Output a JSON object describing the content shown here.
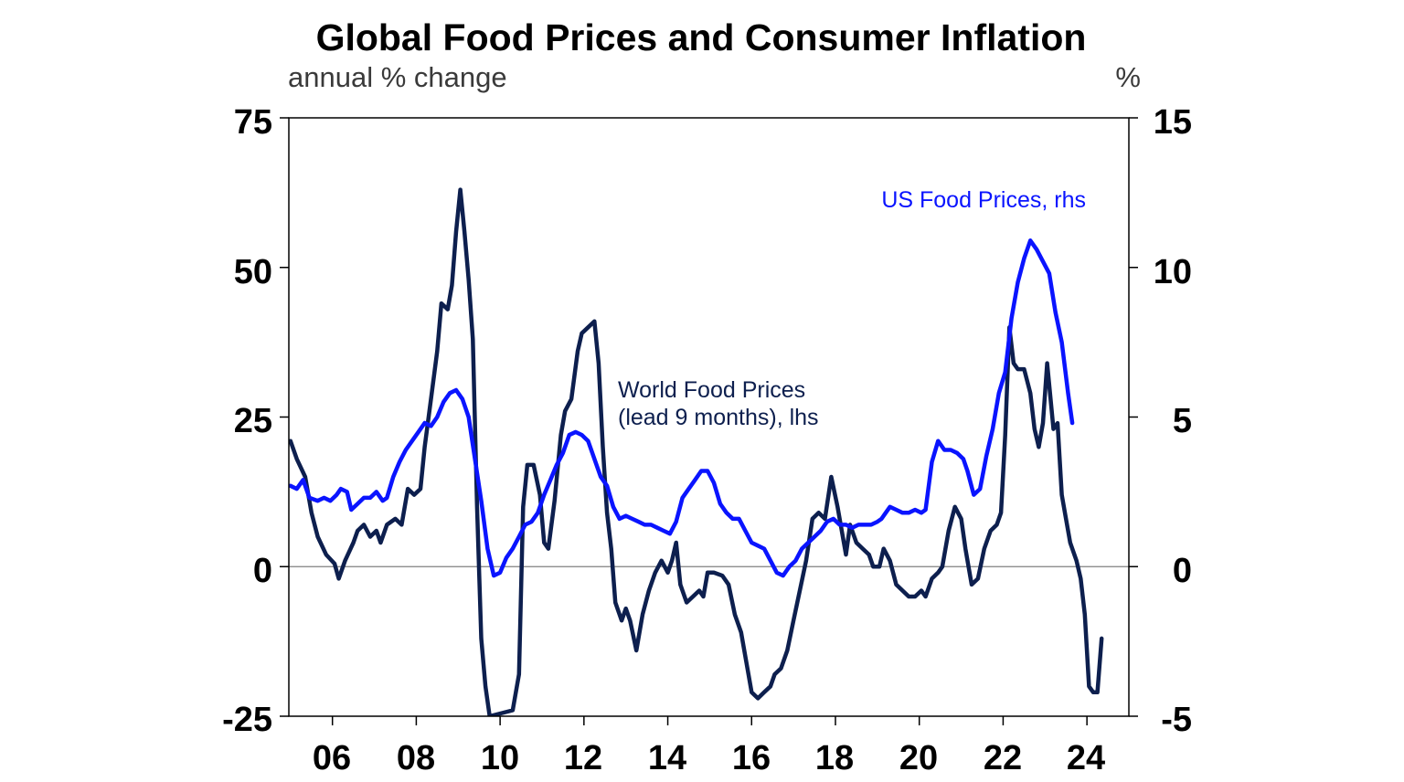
{
  "chart_data": {
    "type": "line",
    "title": "Global Food Prices and Consumer Inflation",
    "subtitle": "annual % change",
    "right_unit": "%",
    "x_ticks": [
      "06",
      "08",
      "10",
      "12",
      "14",
      "16",
      "18",
      "20",
      "22",
      "24"
    ],
    "x_tick_years": [
      2006,
      2008,
      2010,
      2012,
      2014,
      2016,
      2018,
      2020,
      2022,
      2024
    ],
    "xlim": [
      2004.96,
      2025.0
    ],
    "left_axis": {
      "ylim": [
        -25,
        75
      ],
      "ticks": [
        "75",
        "50",
        "25",
        "0",
        "-25"
      ],
      "tick_values": [
        75,
        50,
        25,
        0,
        -25
      ]
    },
    "right_axis": {
      "ylim": [
        -5,
        15
      ],
      "ticks": [
        "15",
        "10",
        "5",
        "0",
        "-5"
      ],
      "tick_values": [
        15,
        10,
        5,
        0,
        -5
      ]
    },
    "series": [
      {
        "name": "World Food Prices",
        "label_line1": "World Food Prices",
        "label_line2": "(lead 9 months), lhs",
        "axis": "left",
        "color": "#0d1f4e",
        "points": [
          [
            2005.0,
            21
          ],
          [
            2005.15,
            18
          ],
          [
            2005.35,
            15
          ],
          [
            2005.5,
            9
          ],
          [
            2005.65,
            5
          ],
          [
            2005.85,
            2
          ],
          [
            2006.05,
            0.5
          ],
          [
            2006.15,
            -2
          ],
          [
            2006.3,
            1
          ],
          [
            2006.5,
            4
          ],
          [
            2006.6,
            6
          ],
          [
            2006.75,
            7
          ],
          [
            2006.9,
            5
          ],
          [
            2007.05,
            6
          ],
          [
            2007.15,
            4
          ],
          [
            2007.3,
            7
          ],
          [
            2007.5,
            8
          ],
          [
            2007.65,
            7
          ],
          [
            2007.8,
            13
          ],
          [
            2007.95,
            12
          ],
          [
            2008.1,
            13
          ],
          [
            2008.2,
            20
          ],
          [
            2008.35,
            28
          ],
          [
            2008.5,
            36
          ],
          [
            2008.6,
            44
          ],
          [
            2008.75,
            43
          ],
          [
            2008.85,
            47
          ],
          [
            2008.95,
            56
          ],
          [
            2009.05,
            63
          ],
          [
            2009.15,
            56
          ],
          [
            2009.25,
            48
          ],
          [
            2009.35,
            38
          ],
          [
            2009.45,
            10
          ],
          [
            2009.55,
            -12
          ],
          [
            2009.65,
            -20
          ],
          [
            2009.75,
            -25
          ],
          [
            2010.3,
            -24
          ],
          [
            2010.45,
            -18
          ],
          [
            2010.55,
            10
          ],
          [
            2010.65,
            17
          ],
          [
            2010.8,
            17
          ],
          [
            2010.95,
            12
          ],
          [
            2011.05,
            4
          ],
          [
            2011.15,
            3
          ],
          [
            2011.3,
            11
          ],
          [
            2011.45,
            22
          ],
          [
            2011.55,
            26
          ],
          [
            2011.7,
            28
          ],
          [
            2011.85,
            36
          ],
          [
            2011.95,
            39
          ],
          [
            2012.1,
            40
          ],
          [
            2012.25,
            41
          ],
          [
            2012.35,
            34
          ],
          [
            2012.45,
            20
          ],
          [
            2012.55,
            9
          ],
          [
            2012.65,
            3
          ],
          [
            2012.75,
            -6
          ],
          [
            2012.9,
            -9
          ],
          [
            2013.0,
            -7
          ],
          [
            2013.1,
            -9
          ],
          [
            2013.25,
            -14
          ],
          [
            2013.4,
            -8
          ],
          [
            2013.55,
            -4
          ],
          [
            2013.7,
            -1
          ],
          [
            2013.85,
            1
          ],
          [
            2014.0,
            -1
          ],
          [
            2014.1,
            1
          ],
          [
            2014.2,
            4
          ],
          [
            2014.3,
            -3
          ],
          [
            2014.45,
            -6
          ],
          [
            2014.6,
            -5
          ],
          [
            2014.75,
            -4
          ],
          [
            2014.85,
            -5
          ],
          [
            2014.95,
            -1
          ],
          [
            2015.1,
            -1
          ],
          [
            2015.3,
            -1.5
          ],
          [
            2015.45,
            -3
          ],
          [
            2015.6,
            -8
          ],
          [
            2015.75,
            -11
          ],
          [
            2015.9,
            -17
          ],
          [
            2016.0,
            -21
          ],
          [
            2016.15,
            -22
          ],
          [
            2016.3,
            -21
          ],
          [
            2016.45,
            -20
          ],
          [
            2016.55,
            -18
          ],
          [
            2016.7,
            -17
          ],
          [
            2016.85,
            -14
          ],
          [
            2017.0,
            -9
          ],
          [
            2017.15,
            -4
          ],
          [
            2017.3,
            1
          ],
          [
            2017.45,
            8
          ],
          [
            2017.6,
            9
          ],
          [
            2017.75,
            8
          ],
          [
            2017.9,
            15
          ],
          [
            2018.05,
            10
          ],
          [
            2018.15,
            6
          ],
          [
            2018.25,
            2
          ],
          [
            2018.35,
            7
          ],
          [
            2018.5,
            4
          ],
          [
            2018.65,
            3
          ],
          [
            2018.8,
            2
          ],
          [
            2018.9,
            0
          ],
          [
            2019.05,
            0
          ],
          [
            2019.15,
            3
          ],
          [
            2019.3,
            1
          ],
          [
            2019.45,
            -3
          ],
          [
            2019.6,
            -4
          ],
          [
            2019.75,
            -5
          ],
          [
            2019.9,
            -5
          ],
          [
            2020.05,
            -4
          ],
          [
            2020.15,
            -5
          ],
          [
            2020.3,
            -2
          ],
          [
            2020.45,
            -1
          ],
          [
            2020.55,
            0
          ],
          [
            2020.7,
            6
          ],
          [
            2020.85,
            10
          ],
          [
            2021.0,
            8
          ],
          [
            2021.1,
            3
          ],
          [
            2021.25,
            -3
          ],
          [
            2021.4,
            -2
          ],
          [
            2021.55,
            3
          ],
          [
            2021.7,
            6
          ],
          [
            2021.85,
            7
          ],
          [
            2021.95,
            9
          ],
          [
            2022.05,
            22
          ],
          [
            2022.15,
            40
          ],
          [
            2022.25,
            34
          ],
          [
            2022.35,
            33
          ],
          [
            2022.5,
            33
          ],
          [
            2022.65,
            29
          ],
          [
            2022.75,
            23
          ],
          [
            2022.85,
            20
          ],
          [
            2022.95,
            24
          ],
          [
            2023.05,
            34
          ],
          [
            2023.2,
            23
          ],
          [
            2023.3,
            24
          ],
          [
            2023.4,
            12
          ],
          [
            2023.5,
            8
          ],
          [
            2023.6,
            4
          ],
          [
            2023.75,
            1
          ],
          [
            2023.85,
            -2
          ],
          [
            2023.95,
            -8
          ],
          [
            2024.05,
            -20
          ],
          [
            2024.15,
            -21
          ],
          [
            2024.25,
            -21
          ],
          [
            2024.35,
            -12
          ]
        ]
      },
      {
        "name": "US Food Prices",
        "label": "US Food Prices, rhs",
        "axis": "right",
        "color": "#0a14ff",
        "points": [
          [
            2005.0,
            2.7
          ],
          [
            2005.15,
            2.6
          ],
          [
            2005.3,
            2.9
          ],
          [
            2005.45,
            2.3
          ],
          [
            2005.65,
            2.2
          ],
          [
            2005.8,
            2.3
          ],
          [
            2005.95,
            2.2
          ],
          [
            2006.1,
            2.4
          ],
          [
            2006.2,
            2.6
          ],
          [
            2006.35,
            2.5
          ],
          [
            2006.45,
            1.9
          ],
          [
            2006.6,
            2.1
          ],
          [
            2006.75,
            2.3
          ],
          [
            2006.9,
            2.3
          ],
          [
            2007.05,
            2.5
          ],
          [
            2007.2,
            2.2
          ],
          [
            2007.3,
            2.3
          ],
          [
            2007.45,
            3.0
          ],
          [
            2007.6,
            3.5
          ],
          [
            2007.75,
            3.9
          ],
          [
            2007.9,
            4.2
          ],
          [
            2008.05,
            4.5
          ],
          [
            2008.2,
            4.8
          ],
          [
            2008.35,
            4.7
          ],
          [
            2008.5,
            5.0
          ],
          [
            2008.65,
            5.5
          ],
          [
            2008.8,
            5.8
          ],
          [
            2008.95,
            5.9
          ],
          [
            2009.1,
            5.6
          ],
          [
            2009.25,
            5.0
          ],
          [
            2009.4,
            3.6
          ],
          [
            2009.55,
            2.2
          ],
          [
            2009.7,
            0.6
          ],
          [
            2009.85,
            -0.3
          ],
          [
            2010.0,
            -0.2
          ],
          [
            2010.15,
            0.3
          ],
          [
            2010.3,
            0.6
          ],
          [
            2010.45,
            1.0
          ],
          [
            2010.6,
            1.4
          ],
          [
            2010.75,
            1.5
          ],
          [
            2010.9,
            1.8
          ],
          [
            2011.05,
            2.4
          ],
          [
            2011.2,
            2.9
          ],
          [
            2011.35,
            3.4
          ],
          [
            2011.5,
            3.8
          ],
          [
            2011.65,
            4.4
          ],
          [
            2011.8,
            4.5
          ],
          [
            2011.95,
            4.4
          ],
          [
            2012.1,
            4.2
          ],
          [
            2012.25,
            3.6
          ],
          [
            2012.4,
            3.0
          ],
          [
            2012.55,
            2.7
          ],
          [
            2012.7,
            2.0
          ],
          [
            2012.85,
            1.6
          ],
          [
            2013.0,
            1.7
          ],
          [
            2013.15,
            1.6
          ],
          [
            2013.3,
            1.5
          ],
          [
            2013.45,
            1.4
          ],
          [
            2013.6,
            1.4
          ],
          [
            2013.75,
            1.3
          ],
          [
            2013.9,
            1.2
          ],
          [
            2014.05,
            1.1
          ],
          [
            2014.2,
            1.5
          ],
          [
            2014.35,
            2.3
          ],
          [
            2014.5,
            2.6
          ],
          [
            2014.65,
            2.9
          ],
          [
            2014.8,
            3.2
          ],
          [
            2014.95,
            3.2
          ],
          [
            2015.1,
            2.8
          ],
          [
            2015.25,
            2.1
          ],
          [
            2015.4,
            1.8
          ],
          [
            2015.55,
            1.6
          ],
          [
            2015.7,
            1.6
          ],
          [
            2015.85,
            1.2
          ],
          [
            2016.0,
            0.8
          ],
          [
            2016.15,
            0.7
          ],
          [
            2016.3,
            0.6
          ],
          [
            2016.45,
            0.2
          ],
          [
            2016.6,
            -0.2
          ],
          [
            2016.75,
            -0.3
          ],
          [
            2016.9,
            0.0
          ],
          [
            2017.05,
            0.2
          ],
          [
            2017.2,
            0.6
          ],
          [
            2017.35,
            0.8
          ],
          [
            2017.5,
            1.0
          ],
          [
            2017.65,
            1.2
          ],
          [
            2017.8,
            1.5
          ],
          [
            2017.95,
            1.6
          ],
          [
            2018.1,
            1.4
          ],
          [
            2018.25,
            1.4
          ],
          [
            2018.4,
            1.3
          ],
          [
            2018.55,
            1.4
          ],
          [
            2018.7,
            1.4
          ],
          [
            2018.85,
            1.4
          ],
          [
            2019.0,
            1.5
          ],
          [
            2019.1,
            1.6
          ],
          [
            2019.2,
            1.8
          ],
          [
            2019.3,
            2.0
          ],
          [
            2019.45,
            1.9
          ],
          [
            2019.6,
            1.8
          ],
          [
            2019.75,
            1.8
          ],
          [
            2019.9,
            1.9
          ],
          [
            2020.05,
            1.8
          ],
          [
            2020.15,
            1.9
          ],
          [
            2020.3,
            3.5
          ],
          [
            2020.45,
            4.2
          ],
          [
            2020.6,
            3.9
          ],
          [
            2020.75,
            3.9
          ],
          [
            2020.9,
            3.8
          ],
          [
            2021.05,
            3.6
          ],
          [
            2021.15,
            3.2
          ],
          [
            2021.3,
            2.4
          ],
          [
            2021.45,
            2.6
          ],
          [
            2021.6,
            3.7
          ],
          [
            2021.75,
            4.6
          ],
          [
            2021.9,
            5.8
          ],
          [
            2022.05,
            6.5
          ],
          [
            2022.2,
            8.3
          ],
          [
            2022.35,
            9.5
          ],
          [
            2022.5,
            10.3
          ],
          [
            2022.65,
            10.9
          ],
          [
            2022.8,
            10.6
          ],
          [
            2022.95,
            10.2
          ],
          [
            2023.1,
            9.8
          ],
          [
            2023.25,
            8.5
          ],
          [
            2023.4,
            7.5
          ],
          [
            2023.55,
            5.8
          ],
          [
            2023.65,
            4.8
          ]
        ]
      }
    ]
  }
}
